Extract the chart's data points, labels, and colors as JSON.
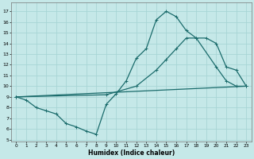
{
  "title": "",
  "xlabel": "Humidex (Indice chaleur)",
  "bg_color": "#c5e8e8",
  "grid_color": "#a8d5d5",
  "line_color": "#1a6b6b",
  "xlim": [
    -0.5,
    23.5
  ],
  "ylim": [
    4.8,
    17.8
  ],
  "xticks": [
    0,
    1,
    2,
    3,
    4,
    5,
    6,
    7,
    8,
    9,
    10,
    11,
    12,
    13,
    14,
    15,
    16,
    17,
    18,
    19,
    20,
    21,
    22,
    23
  ],
  "yticks": [
    5,
    6,
    7,
    8,
    9,
    10,
    11,
    12,
    13,
    14,
    15,
    16,
    17
  ],
  "line1_x": [
    0,
    1,
    2,
    3,
    4,
    5,
    6,
    7,
    8,
    9,
    10,
    11,
    12,
    13,
    14,
    15,
    16,
    17,
    18,
    20,
    21,
    22,
    23
  ],
  "line1_y": [
    9.0,
    8.7,
    8.0,
    7.7,
    7.4,
    6.5,
    6.2,
    5.8,
    5.5,
    8.3,
    9.3,
    10.5,
    12.6,
    13.5,
    16.2,
    17.0,
    16.5,
    15.2,
    14.5,
    11.8,
    10.5,
    10.0,
    10.0
  ],
  "line2_x": [
    0,
    23
  ],
  "line2_y": [
    9.0,
    10.0
  ],
  "line3_x": [
    0,
    9,
    12,
    14,
    15,
    16,
    17,
    18,
    19,
    20,
    21,
    22,
    23
  ],
  "line3_y": [
    9.0,
    9.2,
    10.0,
    11.5,
    12.5,
    13.5,
    14.5,
    14.5,
    14.5,
    14.0,
    11.8,
    11.5,
    10.0
  ],
  "marker": "+",
  "marker_size": 3,
  "linewidth": 0.9
}
